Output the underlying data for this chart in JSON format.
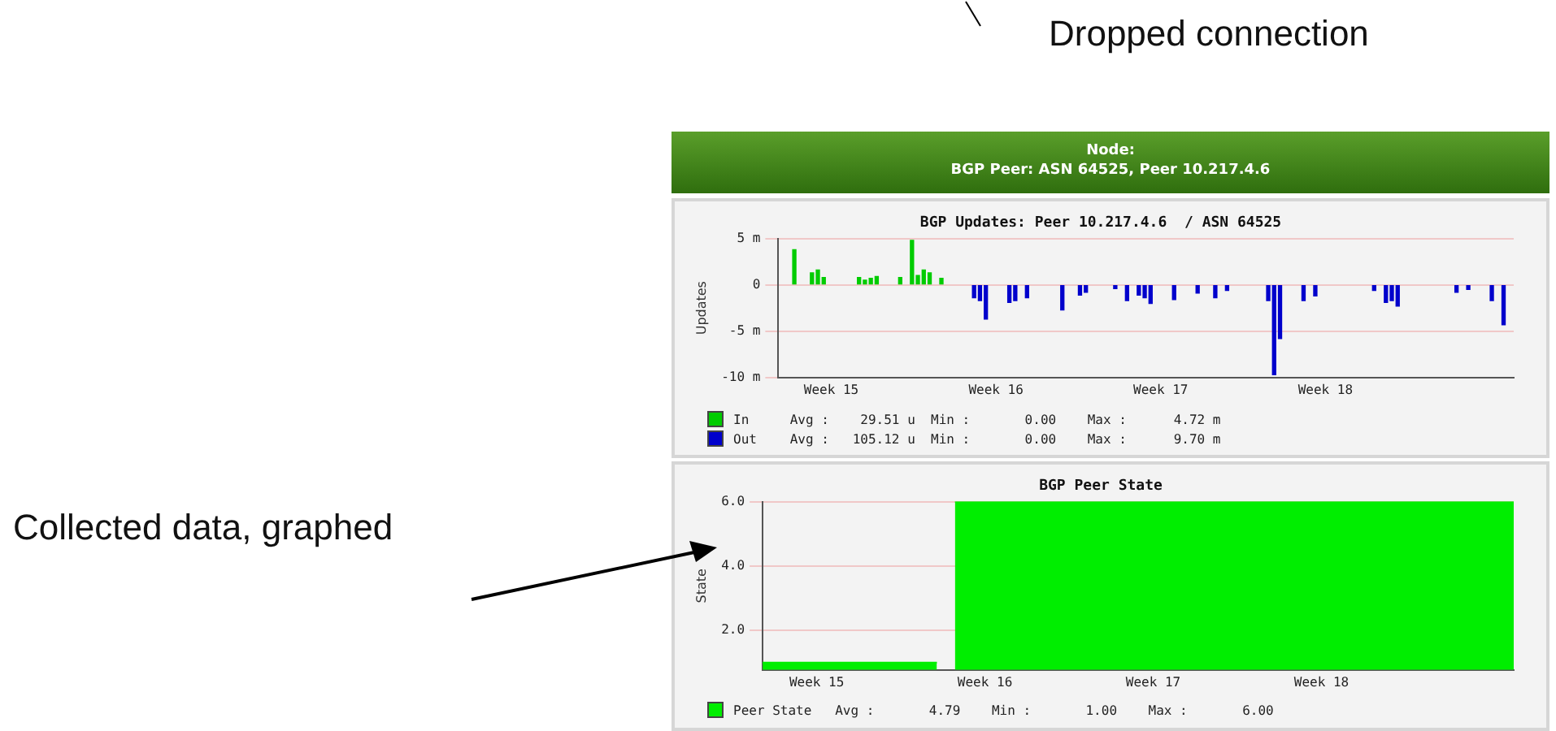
{
  "chart_data": [
    {
      "type": "bar",
      "title": "BGP Updates: Peer 10.217.4.6  / ASN 64525",
      "ylabel": "Updates",
      "annotations": [
        "Node:",
        "BGP Peer: ASN 64525, Peer 10.217.4.6",
        "Dropped connection",
        "Avg :    29.51 u  Min :       0.00    Max :      4.72 m",
        "Avg :   105.12 u  Min :       0.00    Max :      9.70 m"
      ],
      "categories": [
        null,
        null,
        null,
        null,
        null,
        null,
        null,
        null,
        null,
        "Week 15",
        null,
        null,
        null,
        null,
        null,
        null,
        null,
        null,
        null,
        null,
        null,
        null,
        null,
        null,
        null,
        null,
        null,
        null,
        null,
        null,
        null,
        null,
        null,
        null,
        null,
        null,
        null,
        "Week 16",
        null,
        null,
        null,
        null,
        null,
        null,
        null,
        null,
        null,
        null,
        null,
        null,
        null,
        null,
        null,
        null,
        null,
        null,
        null,
        null,
        null,
        null,
        null,
        null,
        null,
        null,
        null,
        "Week 17",
        null,
        null,
        null,
        null,
        null,
        null,
        null,
        null,
        null,
        null,
        null,
        null,
        null,
        null,
        null,
        null,
        null,
        null,
        null,
        null,
        null,
        null,
        null,
        null,
        null,
        null,
        null,
        "Week 18",
        null,
        null,
        null,
        null,
        null,
        null,
        null,
        null,
        null,
        null,
        null,
        null,
        null,
        null,
        null,
        null,
        null,
        null,
        null,
        null,
        null,
        null,
        null,
        null,
        null,
        null,
        null,
        null,
        null,
        null,
        null,
        null
      ],
      "series": [
        {
          "name": "In",
          "color": "#00cc00",
          "values": [
            null,
            null,
            null,
            3.8,
            null,
            null,
            1.3,
            1.6,
            0.8,
            null,
            null,
            null,
            null,
            null,
            0.8,
            0.5,
            0.7,
            0.9,
            null,
            null,
            null,
            0.8,
            null,
            4.8,
            1.0,
            1.6,
            1.3,
            null,
            0.7,
            null,
            null,
            null,
            null,
            null,
            null,
            null,
            null,
            null,
            null,
            null,
            null,
            null,
            null,
            null,
            null,
            null,
            null,
            null,
            null,
            null,
            null,
            null,
            null,
            null,
            null,
            null,
            null,
            null,
            null,
            null,
            null,
            null,
            null,
            null,
            null,
            null,
            null,
            null,
            null,
            null,
            null,
            null,
            null,
            null,
            null,
            null,
            null,
            null,
            null,
            null,
            null,
            null,
            null,
            null,
            null,
            null,
            null,
            null,
            null,
            null,
            null,
            null,
            null,
            null,
            null,
            null,
            null,
            null,
            null,
            null,
            null,
            null,
            null,
            null,
            null,
            null,
            null,
            null,
            null,
            null,
            null,
            null,
            null,
            null,
            null,
            null,
            null,
            null,
            null,
            null,
            null,
            null,
            null,
            null,
            null,
            null
          ]
        },
        {
          "name": "Out",
          "color": "#0000cc",
          "values": [
            null,
            null,
            null,
            null,
            null,
            null,
            null,
            null,
            null,
            null,
            null,
            null,
            null,
            null,
            null,
            null,
            null,
            null,
            null,
            null,
            null,
            null,
            null,
            null,
            null,
            null,
            null,
            null,
            null,
            null,
            null,
            null,
            null,
            -1.4,
            -1.7,
            -3.7,
            null,
            null,
            null,
            -1.9,
            -1.7,
            null,
            -1.4,
            null,
            null,
            null,
            null,
            null,
            -2.7,
            null,
            null,
            -1.1,
            -0.8,
            null,
            null,
            null,
            null,
            -0.4,
            null,
            -1.7,
            null,
            -1.1,
            -1.4,
            -2.0,
            null,
            null,
            null,
            -1.6,
            null,
            null,
            null,
            -0.9,
            null,
            null,
            -1.4,
            null,
            -0.6,
            null,
            null,
            null,
            null,
            null,
            null,
            -1.7,
            -9.7,
            -5.8,
            null,
            null,
            null,
            -1.7,
            null,
            -1.2,
            null,
            null,
            null,
            null,
            null,
            null,
            null,
            null,
            null,
            -0.6,
            null,
            -1.9,
            -1.7,
            -2.3,
            null,
            null,
            null,
            null,
            null,
            null,
            null,
            null,
            null,
            -0.8,
            null,
            -0.5,
            null,
            null,
            null,
            -1.7,
            null,
            -4.3,
            null,
            null
          ]
        }
      ],
      "ylim": [
        -10,
        5
      ],
      "yticks": [
        {
          "value": -10,
          "label": "-10 m"
        },
        {
          "value": -5,
          "label": "-5 m"
        },
        0,
        {
          "value": 5,
          "label": "5 m"
        }
      ],
      "grid": "y",
      "legend": "bottom"
    },
    {
      "type": "area",
      "title": "BGP Peer State",
      "ylabel": "State",
      "annotations": [
        "Avg :       4.79    Min :       1.00    Max :       6.00",
        "Collected data, graphed"
      ],
      "categories": [
        null,
        null,
        null,
        null,
        null,
        null,
        null,
        null,
        null,
        "Week 15",
        null,
        null,
        null,
        null,
        null,
        null,
        null,
        null,
        null,
        null,
        null,
        null,
        null,
        null,
        null,
        null,
        null,
        null,
        null,
        null,
        null,
        null,
        null,
        null,
        null,
        null,
        null,
        "Week 16",
        null,
        null,
        null,
        null,
        null,
        null,
        null,
        null,
        null,
        null,
        null,
        null,
        null,
        null,
        null,
        null,
        null,
        null,
        null,
        null,
        null,
        null,
        null,
        null,
        null,
        null,
        null,
        "Week 17",
        null,
        null,
        null,
        null,
        null,
        null,
        null,
        null,
        null,
        null,
        null,
        null,
        null,
        null,
        null,
        null,
        null,
        null,
        null,
        null,
        null,
        null,
        null,
        null,
        null,
        null,
        null,
        "Week 18",
        null,
        null,
        null,
        null,
        null,
        null,
        null,
        null,
        null,
        null,
        null,
        null,
        null,
        null,
        null,
        null,
        null,
        null,
        null,
        null,
        null,
        null,
        null,
        null,
        null,
        null,
        null,
        null,
        null,
        null,
        null,
        null
      ],
      "series": [
        {
          "name": "Peer State",
          "color": "#00ee00",
          "values": [
            1,
            1,
            1,
            1,
            1,
            1,
            1,
            1,
            1,
            1,
            1,
            1,
            1,
            1,
            1,
            1,
            1,
            1,
            1,
            1,
            1,
            1,
            1,
            1,
            1,
            1,
            1,
            1,
            1,
            1,
            null,
            null,
            6,
            6,
            6,
            6,
            6,
            6,
            6,
            6,
            6,
            6,
            6,
            6,
            6,
            6,
            6,
            6,
            6,
            6,
            6,
            6,
            6,
            6,
            6,
            6,
            6,
            6,
            6,
            6,
            6,
            6,
            6,
            6,
            6,
            6,
            6,
            6,
            6,
            6,
            6,
            6,
            6,
            6,
            6,
            6,
            6,
            6,
            6,
            6,
            6,
            6,
            6,
            6,
            6,
            6,
            6,
            6,
            6,
            6,
            6,
            6,
            6,
            6,
            6,
            6,
            6,
            6,
            6,
            6,
            6,
            6,
            6,
            6,
            6,
            6,
            6,
            6,
            6,
            6,
            6,
            6,
            6,
            6,
            6,
            6,
            6,
            6,
            6,
            6,
            6,
            6,
            6,
            6,
            6,
            6
          ]
        }
      ],
      "ylim": [
        0.77,
        6
      ],
      "yticks": [
        {
          "value": 2,
          "label": "2.0"
        },
        {
          "value": 4,
          "label": "4.0"
        },
        {
          "value": 6,
          "label": "6.0"
        }
      ],
      "grid": "y",
      "legend": "bottom"
    }
  ]
}
